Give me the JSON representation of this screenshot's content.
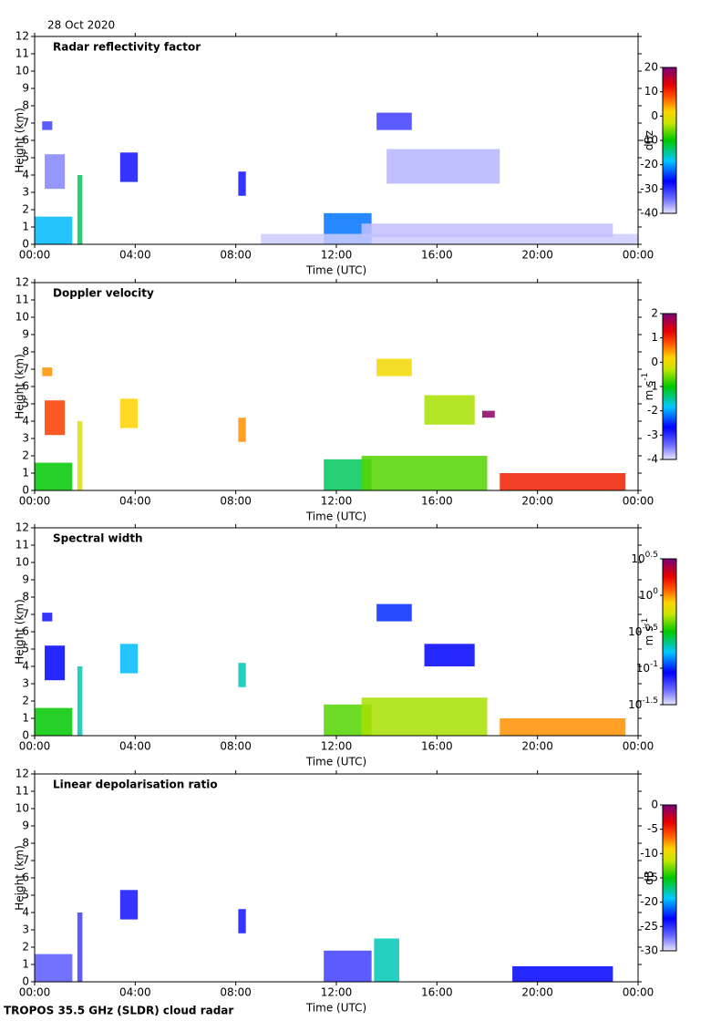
{
  "date": "28 Oct 2020",
  "footer": "TROPOS 35.5 GHz (SLDR) cloud radar",
  "chart_data": [
    {
      "type": "heatmap",
      "title": "Radar reflectivity factor",
      "xlabel": "Time (UTC)",
      "ylabel": "Height (km)",
      "xlim": [
        0,
        24
      ],
      "xticks": [
        {
          "value": 0,
          "label": "00:00"
        },
        {
          "value": 4,
          "label": "04:00"
        },
        {
          "value": 8,
          "label": "08:00"
        },
        {
          "value": 12,
          "label": "12:00"
        },
        {
          "value": 16,
          "label": "16:00"
        },
        {
          "value": 20,
          "label": "20:00"
        },
        {
          "value": 24,
          "label": "00:00"
        }
      ],
      "ylim": [
        0,
        12
      ],
      "yticks": [
        0,
        1,
        2,
        3,
        4,
        5,
        6,
        7,
        8,
        9,
        10,
        11,
        12
      ],
      "colorbar": {
        "label": "dBz",
        "lim": [
          -40,
          20
        ],
        "ticks": [
          -40,
          -30,
          -20,
          -10,
          0,
          10,
          20
        ]
      }
    },
    {
      "type": "heatmap",
      "title": "Doppler velocity",
      "xlabel": "Time (UTC)",
      "ylabel": "Height (km)",
      "xlim": [
        0,
        24
      ],
      "xticks": [
        {
          "value": 0,
          "label": "00:00"
        },
        {
          "value": 4,
          "label": "04:00"
        },
        {
          "value": 8,
          "label": "08:00"
        },
        {
          "value": 12,
          "label": "12:00"
        },
        {
          "value": 16,
          "label": "16:00"
        },
        {
          "value": 20,
          "label": "20:00"
        },
        {
          "value": 24,
          "label": "00:00"
        }
      ],
      "ylim": [
        0,
        12
      ],
      "yticks": [
        0,
        1,
        2,
        3,
        4,
        5,
        6,
        7,
        8,
        9,
        10,
        11,
        12
      ],
      "colorbar": {
        "label": "m s",
        "label_exponent": "-1",
        "lim": [
          -4,
          2
        ],
        "ticks": [
          -4,
          -3,
          -2,
          -1,
          0,
          1,
          2
        ]
      }
    },
    {
      "type": "heatmap",
      "title": "Spectral width",
      "xlabel": "Time (UTC)",
      "ylabel": "Height (km)",
      "xlim": [
        0,
        24
      ],
      "xticks": [
        {
          "value": 0,
          "label": "00:00"
        },
        {
          "value": 4,
          "label": "04:00"
        },
        {
          "value": 8,
          "label": "08:00"
        },
        {
          "value": 12,
          "label": "12:00"
        },
        {
          "value": 16,
          "label": "16:00"
        },
        {
          "value": 20,
          "label": "20:00"
        },
        {
          "value": 24,
          "label": "00:00"
        }
      ],
      "ylim": [
        0,
        12
      ],
      "yticks": [
        0,
        1,
        2,
        3,
        4,
        5,
        6,
        7,
        8,
        9,
        10,
        11,
        12
      ],
      "colorbar": {
        "label": "m s",
        "label_exponent": "-1",
        "log": true,
        "lim": [
          -1.5,
          0.5
        ],
        "ticks": [
          {
            "value": -1.5,
            "label": "10",
            "exponent": "-1.5"
          },
          {
            "value": -1,
            "label": "10",
            "exponent": "-1"
          },
          {
            "value": -0.5,
            "label": "10",
            "exponent": "-0.5"
          },
          {
            "value": 0,
            "label": "10",
            "exponent": "0"
          },
          {
            "value": 0.5,
            "label": "10",
            "exponent": "0.5"
          }
        ]
      }
    },
    {
      "type": "heatmap",
      "title": "Linear depolarisation ratio",
      "xlabel": "Time (UTC)",
      "ylabel": "Height (km)",
      "xlim": [
        0,
        24
      ],
      "xticks": [
        {
          "value": 0,
          "label": "00:00"
        },
        {
          "value": 4,
          "label": "04:00"
        },
        {
          "value": 8,
          "label": "08:00"
        },
        {
          "value": 12,
          "label": "12:00"
        },
        {
          "value": 16,
          "label": "16:00"
        },
        {
          "value": 20,
          "label": "20:00"
        },
        {
          "value": 24,
          "label": "00:00"
        }
      ],
      "ylim": [
        0,
        12
      ],
      "yticks": [
        0,
        1,
        2,
        3,
        4,
        5,
        6,
        7,
        8,
        9,
        10,
        11,
        12
      ],
      "colorbar": {
        "label": "dB",
        "lim": [
          -30,
          0
        ],
        "ticks": [
          -30,
          -25,
          -20,
          -15,
          -10,
          -5,
          0
        ]
      }
    }
  ]
}
